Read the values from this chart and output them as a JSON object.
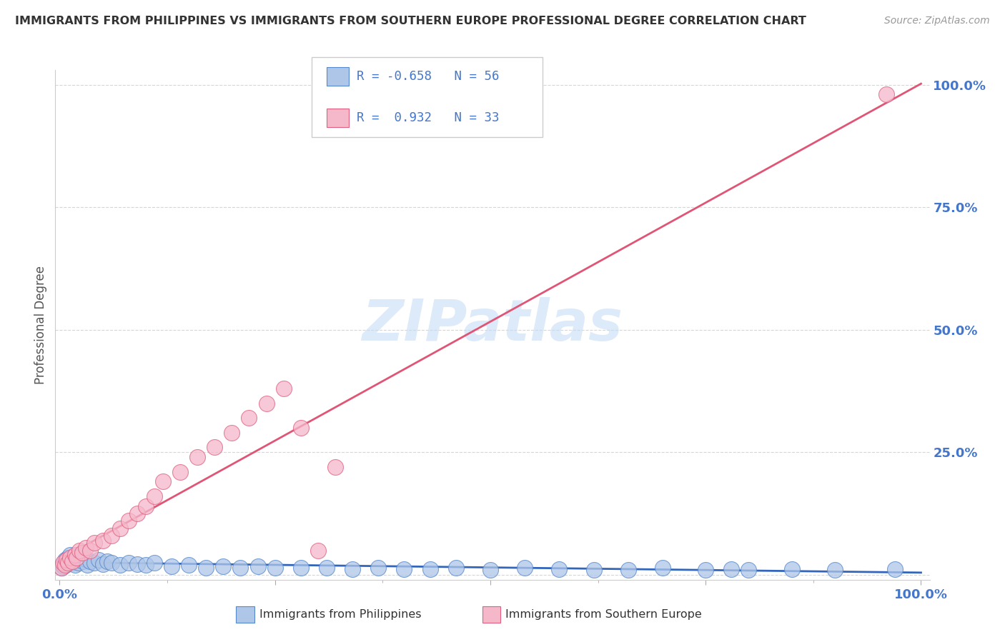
{
  "title": "IMMIGRANTS FROM PHILIPPINES VS IMMIGRANTS FROM SOUTHERN EUROPE PROFESSIONAL DEGREE CORRELATION CHART",
  "source": "Source: ZipAtlas.com",
  "ylabel": "Professional Degree",
  "blue_color": "#aec6e8",
  "pink_color": "#f5b8cb",
  "blue_edge_color": "#5588cc",
  "pink_edge_color": "#e06080",
  "blue_line_color": "#3366bb",
  "pink_line_color": "#e05575",
  "title_color": "#333333",
  "source_color": "#999999",
  "axis_label_color": "#4477cc",
  "ylabel_color": "#555555",
  "watermark_text": "ZIPatlas",
  "watermark_color": "#c5ddf5",
  "grid_color": "#cccccc",
  "legend_r1_text": "R = -0.658   N = 56",
  "legend_r2_text": "R =  0.932   N = 33",
  "blue_label": "Immigrants from Philippines",
  "pink_label": "Immigrants from Southern Europe",
  "xlim": [
    0,
    100
  ],
  "ylim": [
    0,
    100
  ],
  "blue_x": [
    0.2,
    0.3,
    0.5,
    0.6,
    0.8,
    0.9,
    1.0,
    1.1,
    1.2,
    1.3,
    1.5,
    1.6,
    1.8,
    2.0,
    2.2,
    2.5,
    2.7,
    3.0,
    3.2,
    3.5,
    4.0,
    4.5,
    5.0,
    5.5,
    6.0,
    7.0,
    8.0,
    9.0,
    10.0,
    11.0,
    13.0,
    15.0,
    17.0,
    19.0,
    21.0,
    23.0,
    25.0,
    28.0,
    31.0,
    34.0,
    37.0,
    40.0,
    43.0,
    46.0,
    50.0,
    54.0,
    58.0,
    62.0,
    66.0,
    70.0,
    75.0,
    78.0,
    80.0,
    85.0,
    90.0,
    97.0
  ],
  "blue_y": [
    1.5,
    2.0,
    1.8,
    3.0,
    2.5,
    2.2,
    3.5,
    2.8,
    4.0,
    3.2,
    2.5,
    3.8,
    2.0,
    3.0,
    2.5,
    3.5,
    2.8,
    3.2,
    2.0,
    2.8,
    2.5,
    3.0,
    2.2,
    2.8,
    2.5,
    2.0,
    2.5,
    2.2,
    2.0,
    2.5,
    1.8,
    2.0,
    1.5,
    1.8,
    1.5,
    1.8,
    1.5,
    1.5,
    1.5,
    1.2,
    1.5,
    1.2,
    1.2,
    1.5,
    1.0,
    1.5,
    1.2,
    1.0,
    1.0,
    1.5,
    1.0,
    1.2,
    1.0,
    1.2,
    1.0,
    1.2
  ],
  "pink_x": [
    0.2,
    0.4,
    0.6,
    0.8,
    1.0,
    1.2,
    1.5,
    1.8,
    2.0,
    2.3,
    2.6,
    3.0,
    3.5,
    4.0,
    5.0,
    6.0,
    7.0,
    8.0,
    9.0,
    10.0,
    11.0,
    12.0,
    14.0,
    16.0,
    18.0,
    20.0,
    22.0,
    24.0,
    26.0,
    28.0,
    30.0,
    32.0,
    96.0
  ],
  "pink_y": [
    1.5,
    2.5,
    2.0,
    3.0,
    2.5,
    3.5,
    2.8,
    4.0,
    3.5,
    5.0,
    4.5,
    5.5,
    5.0,
    6.5,
    7.0,
    8.0,
    9.5,
    11.0,
    12.5,
    14.0,
    16.0,
    19.0,
    21.0,
    24.0,
    26.0,
    29.0,
    32.0,
    35.0,
    38.0,
    30.0,
    5.0,
    22.0,
    98.0
  ]
}
